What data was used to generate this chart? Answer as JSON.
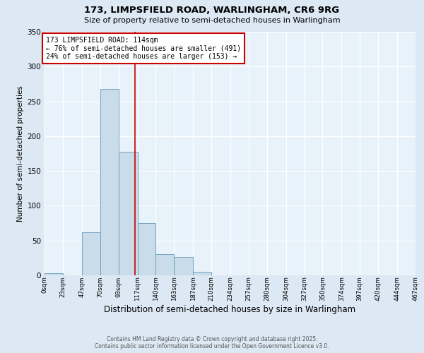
{
  "title1": "173, LIMPSFIELD ROAD, WARLINGHAM, CR6 9RG",
  "title2": "Size of property relative to semi-detached houses in Warlingham",
  "xlabel": "Distribution of semi-detached houses by size in Warlingham",
  "ylabel": "Number of semi-detached properties",
  "bar_edges": [
    0,
    23,
    47,
    70,
    93,
    117,
    140,
    163,
    187,
    210,
    234,
    257,
    280,
    304,
    327,
    350,
    374,
    397,
    420,
    444,
    467
  ],
  "bar_heights": [
    3,
    0,
    62,
    268,
    178,
    75,
    30,
    26,
    5,
    0,
    0,
    0,
    0,
    0,
    0,
    0,
    0,
    0,
    0,
    0
  ],
  "bar_color": "#c8dcea",
  "bar_edgecolor": "#6699bb",
  "vline_x": 114,
  "vline_color": "#cc0000",
  "annotation_title": "173 LIMPSFIELD ROAD: 114sqm",
  "annotation_line1": "← 76% of semi-detached houses are smaller (491)",
  "annotation_line2": "24% of semi-detached houses are larger (153) →",
  "annotation_box_edgecolor": "#cc0000",
  "ylim": [
    0,
    350
  ],
  "yticks": [
    0,
    50,
    100,
    150,
    200,
    250,
    300,
    350
  ],
  "tick_labels": [
    "0sqm",
    "23sqm",
    "47sqm",
    "70sqm",
    "93sqm",
    "117sqm",
    "140sqm",
    "163sqm",
    "187sqm",
    "210sqm",
    "234sqm",
    "257sqm",
    "280sqm",
    "304sqm",
    "327sqm",
    "350sqm",
    "374sqm",
    "397sqm",
    "420sqm",
    "444sqm",
    "467sqm"
  ],
  "footer1": "Contains HM Land Registry data © Crown copyright and database right 2025.",
  "footer2": "Contains public sector information licensed under the Open Government Licence v3.0.",
  "bg_color": "#dce8f4",
  "plot_bg_color": "#e8f2fa"
}
